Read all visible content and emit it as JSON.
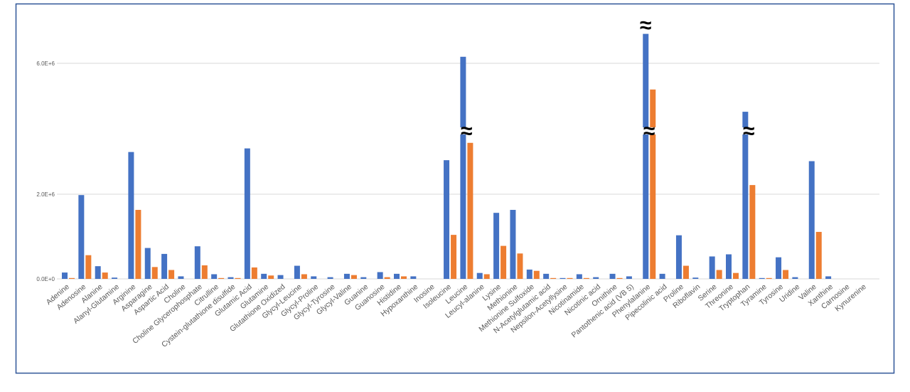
{
  "chart_data": {
    "type": "bar",
    "title": "",
    "xlabel": "",
    "ylabel": "",
    "y_axis": {
      "ticks": [
        0,
        2000000,
        6000000
      ],
      "tick_labels": [
        "0.0E+0",
        "2.0E+6",
        "6.0E+6"
      ],
      "broken_axis": true,
      "grid": true
    },
    "break_symbol": "≈",
    "broken_categories": [
      "Leucine",
      "Phenylalanine",
      "Tryptophan"
    ],
    "legend": "none",
    "colors": {
      "series1": "#4472c4",
      "series2": "#ed7d31",
      "frame": "#2f5597",
      "grid": "#d9d9d9"
    },
    "categories": [
      "Adenine",
      "Adenosine",
      "Alanine",
      "Alanyl-Glutamine",
      "Arginine",
      "Asparagine",
      "Aspartic Acid",
      "Choline",
      "Choline Glycerophosphate",
      "Citrulline",
      "Cystein-glutathione disulfide",
      "Glutamic Acid",
      "Glutamine",
      "Glutathione Oxidized",
      "Glycyl-Leucine",
      "Glycyl-Proline",
      "Glycyl-Tyrosine",
      "Glycyl-Valine",
      "Guanine",
      "Guanosine",
      "Histidine",
      "Hypoxanthine",
      "Inosine",
      "Isoleucine",
      "Leucine",
      "Leucyl-alanine",
      "Lysine",
      "Methionine",
      "Methionine Sulfoxide",
      "N-Acetylglutamic acid",
      "Nepsilon-Acetyllysine",
      "Nicotinamide",
      "Nicotinic acid",
      "Ornithine",
      "Pantothenic acid (VB 5)",
      "Phenylalanine",
      "Pipecolinic acid",
      "Proline",
      "Riboflavin",
      "Serine",
      "Threonine",
      "Tryptophan",
      "Tyramine",
      "Tyrosine",
      "Uridine",
      "Valine",
      "Xanthine",
      "Carnosine",
      "Kynurenine"
    ],
    "series": [
      {
        "values": [
          150000,
          1980000,
          300000,
          30000,
          3290000,
          730000,
          590000,
          60000,
          770000,
          110000,
          40000,
          3400000,
          120000,
          90000,
          310000,
          60000,
          40000,
          120000,
          40000,
          160000,
          120000,
          60000,
          0,
          3040000,
          6200000,
          140000,
          1560000,
          1630000,
          220000,
          120000,
          20000,
          110000,
          40000,
          120000,
          60000,
          6900000,
          120000,
          1030000,
          30000,
          530000,
          580000,
          4520000,
          20000,
          510000,
          40000,
          3010000,
          60000,
          0,
          0
        ]
      },
      {
        "values": [
          20000,
          560000,
          150000,
          0,
          1630000,
          280000,
          210000,
          0,
          320000,
          20000,
          20000,
          270000,
          80000,
          0,
          110000,
          0,
          0,
          90000,
          0,
          40000,
          60000,
          0,
          0,
          1040000,
          3570000,
          110000,
          780000,
          600000,
          190000,
          20000,
          20000,
          20000,
          0,
          20000,
          0,
          5200000,
          0,
          310000,
          0,
          210000,
          140000,
          2280000,
          20000,
          210000,
          0,
          1110000,
          0,
          0,
          0
        ]
      }
    ]
  }
}
